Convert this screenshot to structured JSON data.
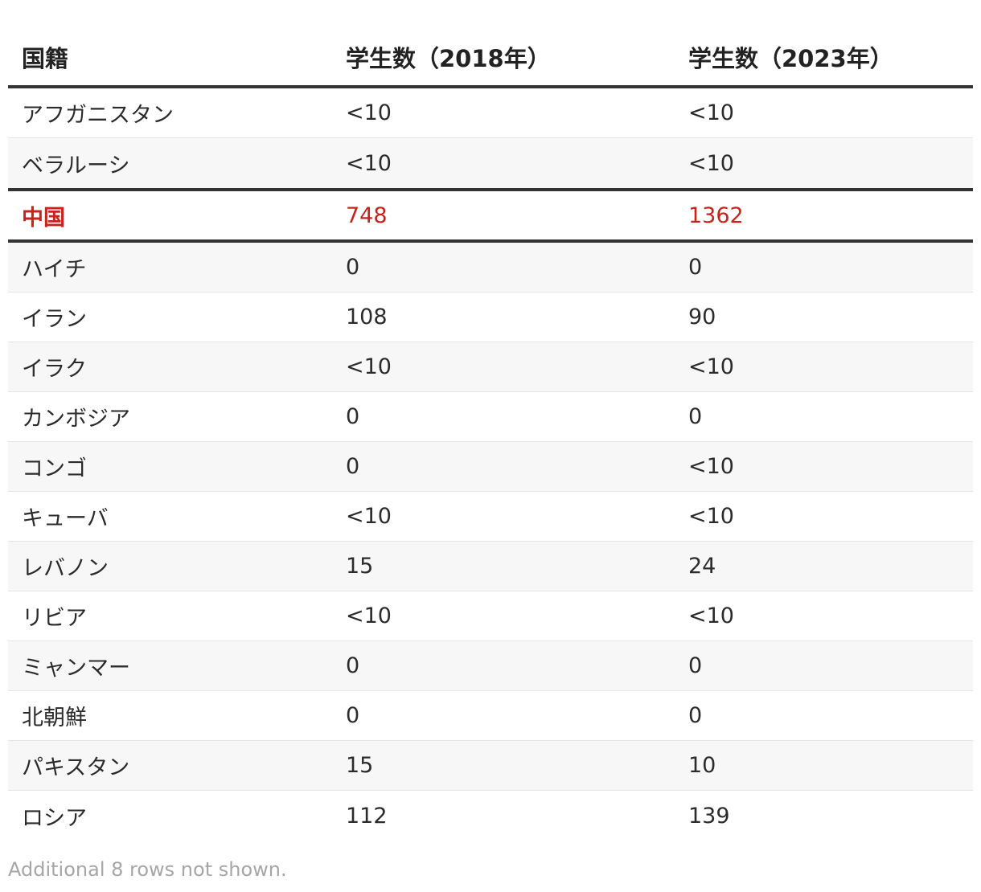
{
  "table": {
    "headers": [
      "国籍",
      "学生数（2018年）",
      "学生数（2023年）"
    ],
    "rows": [
      {
        "country": "アフガニスタン",
        "y2018": "<10",
        "y2023": "<10"
      },
      {
        "country": "ベラルーシ",
        "y2018": "<10",
        "y2023": "<10"
      },
      {
        "country": "中国",
        "y2018": "748",
        "y2023": "1362"
      },
      {
        "country": "ハイチ",
        "y2018": "0",
        "y2023": "0"
      },
      {
        "country": "イラン",
        "y2018": "108",
        "y2023": "90"
      },
      {
        "country": "イラク",
        "y2018": "<10",
        "y2023": "<10"
      },
      {
        "country": "カンボジア",
        "y2018": "0",
        "y2023": "0"
      },
      {
        "country": "コンゴ",
        "y2018": "0",
        "y2023": "<10"
      },
      {
        "country": "キューバ",
        "y2018": "<10",
        "y2023": "<10"
      },
      {
        "country": "レバノン",
        "y2018": "15",
        "y2023": "24"
      },
      {
        "country": "リビア",
        "y2018": "<10",
        "y2023": "<10"
      },
      {
        "country": "ミャンマー",
        "y2018": "0",
        "y2023": "0"
      },
      {
        "country": "北朝鮮",
        "y2018": "0",
        "y2023": "0"
      },
      {
        "country": "パキスタン",
        "y2018": "15",
        "y2023": "10"
      },
      {
        "country": "ロシア",
        "y2018": "112",
        "y2023": "139"
      }
    ],
    "highlight_color": "#c8231b"
  },
  "footnote": "Additional 8 rows not shown."
}
